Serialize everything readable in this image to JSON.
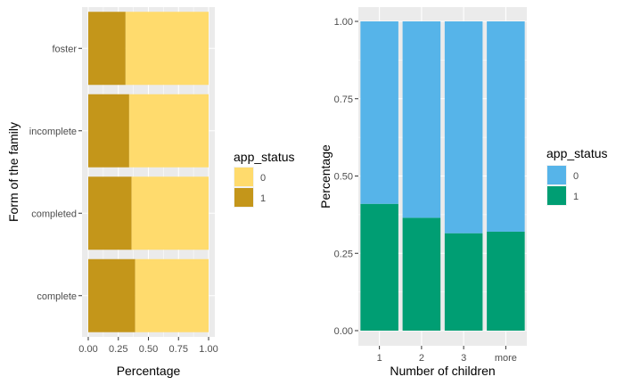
{
  "chart_data": [
    {
      "type": "bar",
      "orientation": "horizontal",
      "stacked": true,
      "xlabel": "Percentage",
      "ylabel": "Form of the family",
      "xlim": [
        0,
        1
      ],
      "xticks": [
        "0.00",
        "0.25",
        "0.50",
        "0.75",
        "1.00"
      ],
      "categories": [
        "foster",
        "incomplete",
        "completed",
        "complete"
      ],
      "series": [
        {
          "name": "0",
          "values": [
            0.69,
            0.66,
            0.64,
            0.61
          ]
        },
        {
          "name": "1",
          "values": [
            0.31,
            0.34,
            0.36,
            0.39
          ]
        }
      ],
      "legend": {
        "title": "app_status",
        "position": "right"
      },
      "colors": {
        "0": "#FFDB6D",
        "1": "#C4961A"
      },
      "panel_background": "#EBEBEB",
      "grid": true
    },
    {
      "type": "bar",
      "orientation": "vertical",
      "stacked": true,
      "xlabel": "Number of children",
      "ylabel": "Percentage",
      "ylim": [
        0,
        1
      ],
      "yticks": [
        "0.00",
        "0.25",
        "0.50",
        "0.75",
        "1.00"
      ],
      "categories": [
        "1",
        "2",
        "3",
        "more"
      ],
      "series": [
        {
          "name": "0",
          "values": [
            0.59,
            0.635,
            0.685,
            0.68
          ]
        },
        {
          "name": "1",
          "values": [
            0.41,
            0.365,
            0.315,
            0.32
          ]
        }
      ],
      "legend": {
        "title": "app_status",
        "position": "right"
      },
      "colors": {
        "0": "#56B4E9",
        "1": "#009E73"
      },
      "panel_background": "#EBEBEB",
      "grid": true
    }
  ]
}
